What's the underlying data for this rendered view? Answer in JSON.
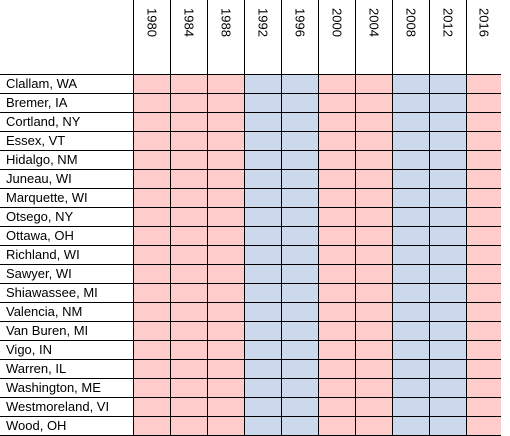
{
  "years": [
    "1980",
    "1984",
    "1988",
    "1992",
    "1996",
    "2000",
    "2004",
    "2008",
    "2012",
    "2016"
  ],
  "counties": [
    "Clallam, WA",
    "Bremer, IA",
    "Cortland, NY",
    "Essex, VT",
    "Hidalgo, NM",
    "Juneau, WI",
    "Marquette, WI",
    "Otsego, NY",
    "Ottawa, OH",
    "Richland, WI",
    "Sawyer, WI",
    "Shiawassee, MI",
    "Valencia, NM",
    "Van Buren, MI",
    "Vigo, IN",
    "Warren, IL",
    "Washington, ME",
    "Westmoreland, VI",
    "Wood, OH"
  ],
  "winners": [
    "R",
    "R",
    "R",
    "D",
    "D",
    "R",
    "R",
    "D",
    "D",
    "R"
  ],
  "colors": {
    "R": "#ffcccc",
    "D": "#ccd9ec"
  }
}
